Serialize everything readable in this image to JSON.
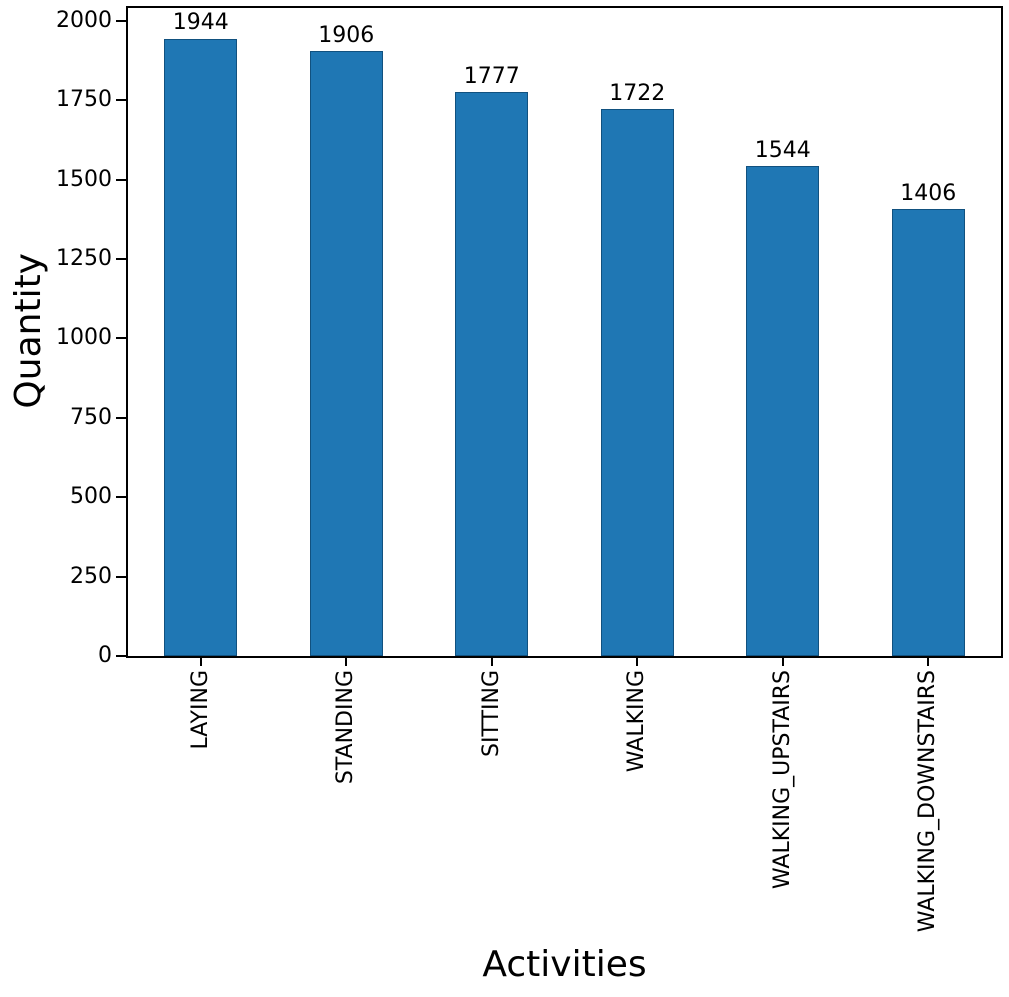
{
  "chart_data": {
    "type": "bar",
    "title": "",
    "xlabel": "Activities",
    "ylabel": "Quantity",
    "categories": [
      "LAYING",
      "STANDING",
      "SITTING",
      "WALKING",
      "WALKING_UPSTAIRS",
      "WALKING_DOWNSTAIRS"
    ],
    "values": [
      1944,
      1906,
      1777,
      1722,
      1544,
      1406
    ],
    "bar_value_labels": [
      "1944",
      "1906",
      "1777",
      "1722",
      "1544",
      "1406"
    ],
    "yticks": [
      0,
      250,
      500,
      750,
      1000,
      1250,
      1500,
      1750,
      2000
    ],
    "ylim": [
      0,
      2040
    ],
    "bar_color": "#1f77b4",
    "bar_edge_color": "#11517f",
    "axis_color": "#000000",
    "text_color": "#000000",
    "background_color": "#ffffff",
    "grid": false,
    "legend": false,
    "x_tick_rotation": 90,
    "bar_width_fraction": 0.5
  }
}
